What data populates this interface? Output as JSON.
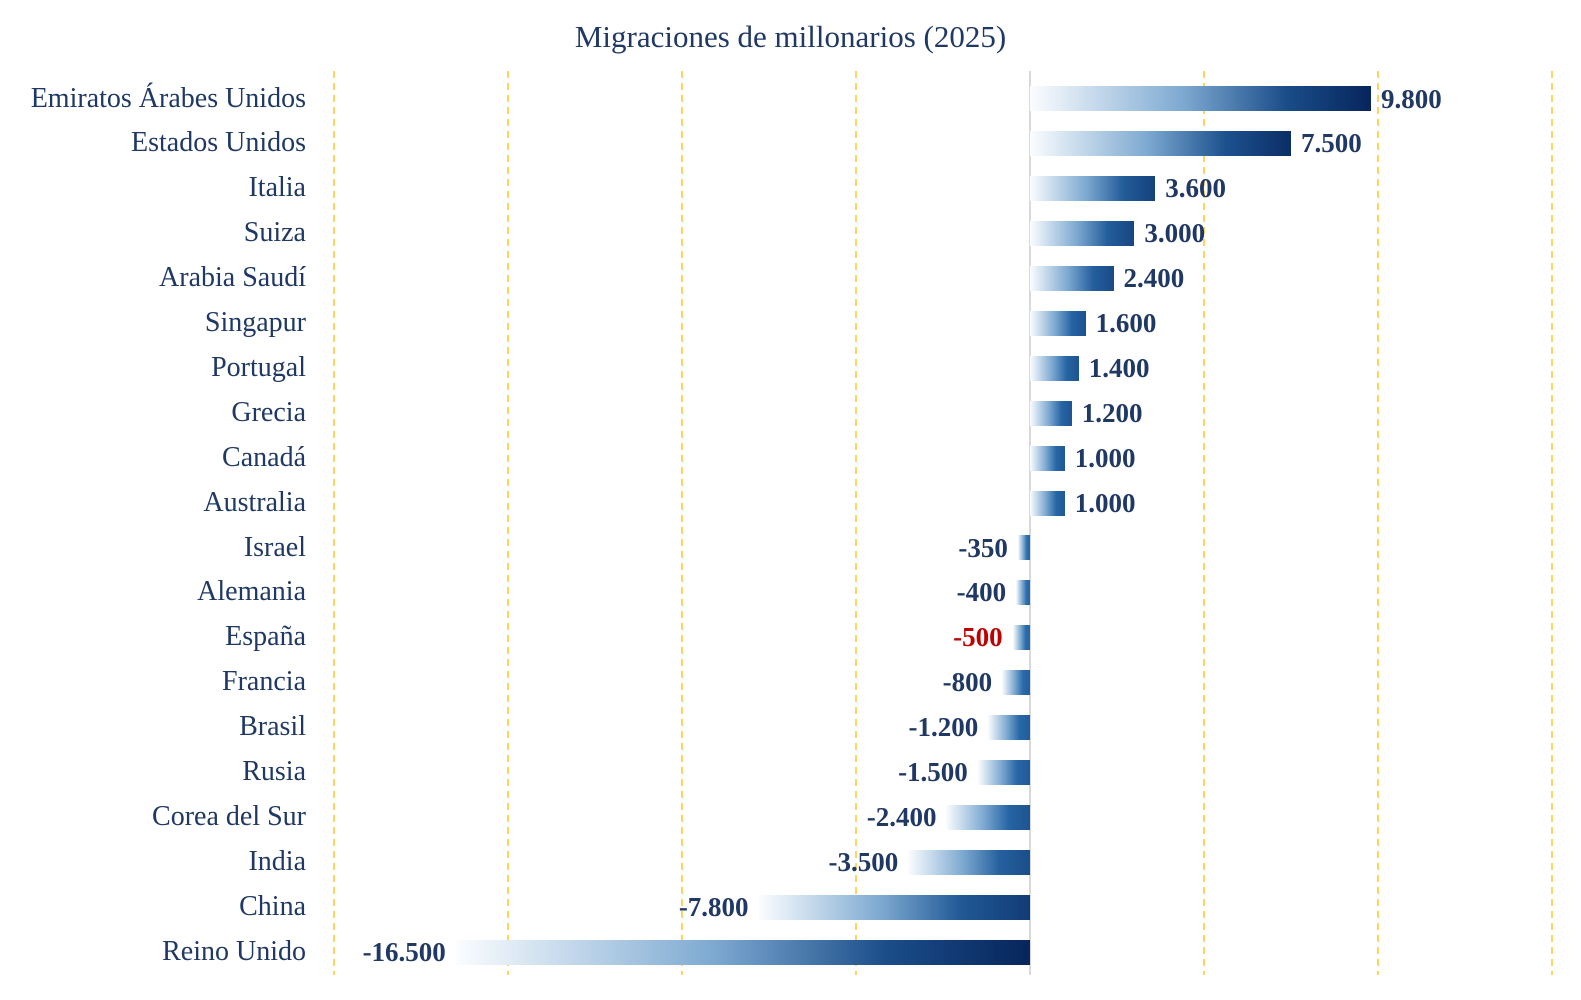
{
  "title": "Migraciones de millonarios (2025)",
  "colors": {
    "text_navy": "#1f3864",
    "highlight_red": "#c00000",
    "gridline_gold": "#ffd55f",
    "baseline_gray": "#d9d9d9",
    "bar_light": "#fbfdff",
    "bar_mid_blue": "#2e74b5",
    "bar_dark_navy": "#07255c"
  },
  "chart_data": {
    "type": "bar",
    "orientation": "horizontal",
    "title": "Migraciones de millonarios (2025)",
    "xlabel": "",
    "ylabel": "",
    "legend": "none",
    "grid": "vertical-dashed-gold",
    "axis": {
      "min": -20000,
      "max": 15000,
      "step": 5000,
      "tick_labels_visible": false
    },
    "bar_style": "gradient light-to-dark left-to-right",
    "categories": [
      "Emiratos Árabes Unidos",
      "Estados Unidos",
      "Italia",
      "Suiza",
      "Arabia Saudí",
      "Singapur",
      "Portugal",
      "Grecia",
      "Canadá",
      "Australia",
      "Israel",
      "Alemania",
      "España",
      "Francia",
      "Brasil",
      "Rusia",
      "Corea del Sur",
      "India",
      "China",
      "Reino Unido"
    ],
    "values": [
      9800,
      7500,
      3600,
      3000,
      2400,
      1600,
      1400,
      1200,
      1000,
      1000,
      -350,
      -400,
      -500,
      -800,
      -1200,
      -1500,
      -2400,
      -3500,
      -7800,
      -16500
    ],
    "value_labels": [
      "9.800",
      "7.500",
      "3.600",
      "3.000",
      "2.400",
      "1.600",
      "1.400",
      "1.200",
      "1.000",
      "1.000",
      "-350",
      "-400",
      "-500",
      "-800",
      "-1.200",
      "-1.500",
      "-2.400",
      "-3.500",
      "-7.800",
      "-16.500"
    ],
    "highlight_category": "España",
    "highlight_note": "value label of España shown in red"
  }
}
